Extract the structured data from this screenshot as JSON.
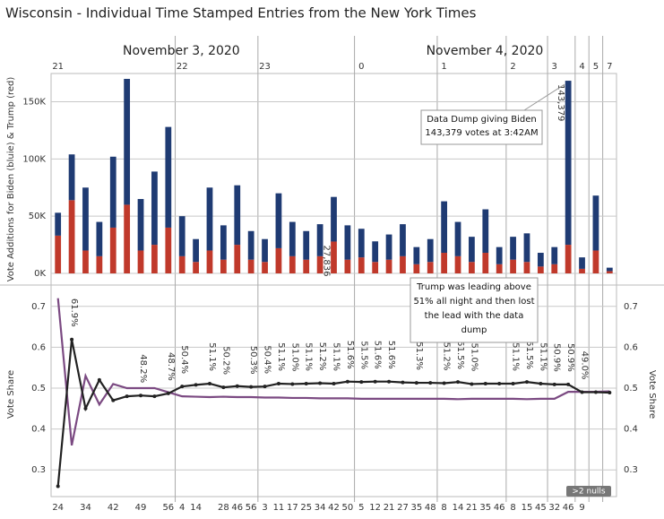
{
  "chart_data": [
    {
      "type": "bar",
      "title": "Wisconsin - Individual Time Stamped Entries from the New York Times",
      "y_label": "Vote Additions for Biden (bluie) & Trump (red)",
      "dates": [
        "November 3, 2020",
        null,
        null,
        null,
        null,
        null,
        null,
        null,
        null,
        null,
        null,
        null,
        null,
        null,
        null,
        null,
        null,
        null,
        null,
        null,
        null,
        null,
        "November 4, 2020",
        null,
        null,
        null,
        null,
        null,
        null,
        null,
        null,
        null,
        null,
        null,
        null,
        null,
        null,
        null,
        null,
        null,
        null
      ],
      "hours": [
        "21",
        null,
        null,
        null,
        null,
        null,
        null,
        null,
        null,
        "22",
        null,
        null,
        null,
        null,
        null,
        "23",
        null,
        null,
        null,
        null,
        null,
        null,
        "0",
        null,
        null,
        null,
        null,
        null,
        "1",
        null,
        null,
        null,
        null,
        "2",
        null,
        null,
        "3",
        null,
        "4",
        "5",
        "7"
      ],
      "stacked": true,
      "series": [
        {
          "name": "Trump",
          "color": "#c0392b",
          "values": [
            33000,
            64000,
            20000,
            15000,
            40000,
            60000,
            20000,
            25000,
            40000,
            15000,
            10000,
            20000,
            12000,
            25000,
            12000,
            10000,
            22000,
            15000,
            12000,
            15000,
            27836,
            12000,
            14000,
            10000,
            12000,
            15000,
            8000,
            10000,
            18000,
            15000,
            10000,
            18000,
            8000,
            12000,
            10000,
            6000,
            8000,
            25000,
            4000,
            20000,
            2000
          ],
          "value_labels": [
            null,
            null,
            null,
            null,
            null,
            null,
            null,
            null,
            null,
            null,
            null,
            null,
            null,
            null,
            null,
            null,
            null,
            null,
            null,
            null,
            "27,836",
            null,
            null,
            null,
            null,
            null,
            null,
            null,
            null,
            null,
            null,
            null,
            null,
            null,
            null,
            null,
            null,
            null,
            null,
            null,
            null
          ]
        },
        {
          "name": "Biden",
          "color": "#1f3b73",
          "values": [
            20000,
            40000,
            55000,
            30000,
            62000,
            110000,
            45000,
            64000,
            88000,
            35000,
            20000,
            55000,
            30000,
            52000,
            25000,
            20000,
            48000,
            30000,
            25000,
            28000,
            39000,
            30000,
            25000,
            18000,
            22000,
            28000,
            15000,
            20000,
            45000,
            30000,
            22000,
            38000,
            15000,
            20000,
            25000,
            12000,
            15000,
            143379,
            10000,
            48000,
            3000
          ],
          "value_labels": [
            null,
            null,
            null,
            null,
            null,
            null,
            null,
            null,
            null,
            null,
            null,
            null,
            null,
            null,
            null,
            null,
            null,
            null,
            null,
            null,
            null,
            null,
            null,
            null,
            null,
            null,
            null,
            null,
            null,
            null,
            null,
            null,
            null,
            null,
            null,
            null,
            null,
            "143,379",
            null,
            null,
            null
          ]
        }
      ],
      "ylim": [
        0,
        170000
      ],
      "yticks": [
        {
          "value": 0,
          "label": "0K"
        },
        {
          "value": 50000,
          "label": "50K"
        },
        {
          "value": 100000,
          "label": "100K"
        },
        {
          "value": 150000,
          "label": "150K"
        }
      ],
      "annotation": [
        "Data Dump giving Biden",
        "143,379 votes at 3:42AM"
      ]
    },
    {
      "type": "line",
      "y_label": "Vote Share",
      "y2_label": "Vote Share",
      "categories": [
        "24",
        null,
        "34",
        null,
        "42",
        null,
        "49",
        null,
        "56",
        "4",
        "14",
        null,
        "28",
        "46",
        "56",
        "3",
        "11",
        "17",
        "25",
        "34",
        "42",
        "50",
        "5",
        "12",
        "21",
        "27",
        "35",
        "48",
        "8",
        "14",
        "21",
        "35",
        "46",
        "8",
        "15",
        "45",
        "32",
        "46",
        "9",
        null,
        null
      ],
      "series": [
        {
          "name": "Trump",
          "color": "#222222",
          "markers": true,
          "values": [
            0.26,
            0.619,
            0.45,
            0.52,
            0.47,
            0.48,
            0.482,
            0.48,
            0.487,
            0.504,
            0.508,
            0.511,
            0.502,
            0.505,
            0.503,
            0.504,
            0.511,
            0.51,
            0.511,
            0.512,
            0.511,
            0.516,
            0.515,
            0.516,
            0.516,
            0.514,
            0.513,
            0.513,
            0.512,
            0.515,
            0.51,
            0.511,
            0.511,
            0.511,
            0.515,
            0.511,
            0.509,
            0.509,
            0.49,
            0.49,
            0.489
          ],
          "value_labels": [
            null,
            "61.9%",
            null,
            null,
            null,
            null,
            "48.2%",
            null,
            "48.7%",
            "50.4%",
            null,
            "51.1%",
            "50.2%",
            null,
            "50.3%",
            "50.4%",
            "51.1%",
            "51.0%",
            "51.1%",
            "51.2%",
            "51.1%",
            "51.6%",
            "51.5%",
            "51.6%",
            "51.6%",
            null,
            "51.3%",
            null,
            "51.2%",
            "51.5%",
            "51.0%",
            null,
            null,
            "51.1%",
            "51.5%",
            "51.1%",
            "50.9%",
            "50.9%",
            "49.0%",
            null,
            null
          ]
        },
        {
          "name": "Biden",
          "color": "#7b4a82",
          "markers": false,
          "values": [
            0.72,
            0.36,
            0.53,
            0.46,
            0.51,
            0.5,
            0.5,
            0.5,
            0.49,
            0.48,
            0.479,
            0.478,
            0.479,
            0.478,
            0.478,
            0.477,
            0.477,
            0.476,
            0.476,
            0.475,
            0.475,
            0.475,
            0.474,
            0.474,
            0.474,
            0.474,
            0.474,
            0.474,
            0.474,
            0.473,
            0.474,
            0.474,
            0.474,
            0.474,
            0.473,
            0.474,
            0.474,
            0.491,
            0.491,
            0.491,
            0.492
          ]
        }
      ],
      "ylim": [
        0.25,
        0.75
      ],
      "yticks": [
        0.3,
        0.4,
        0.5,
        0.6,
        0.7
      ],
      "y2ticks": [
        0.3,
        0.4,
        0.5,
        0.6,
        0.7
      ],
      "annotation": [
        "Trump was leading above",
        "51% all night and then lost",
        "the lead with the data",
        "dump"
      ],
      "badge": ">2 nulls"
    }
  ]
}
